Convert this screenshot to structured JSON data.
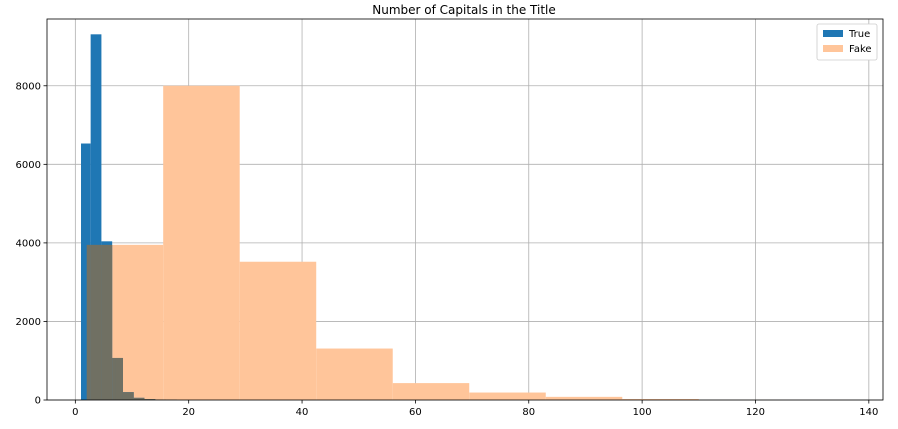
{
  "chart_data": {
    "type": "bar",
    "title": "Number of Capitals in the Title",
    "xlabel": "",
    "ylabel": "",
    "xlim": [
      -5,
      142.5
    ],
    "ylim": [
      0,
      9700
    ],
    "x_ticks": [
      0,
      20,
      40,
      60,
      80,
      100,
      120,
      140
    ],
    "y_ticks": [
      0,
      2000,
      4000,
      6000,
      8000
    ],
    "grid": true,
    "legend_position": "top-right",
    "series": [
      {
        "name": "True",
        "color": "#1f77b4",
        "opacity": 1.0,
        "bins": [
          {
            "x0": 1.0,
            "x1": 2.7,
            "value": 6530
          },
          {
            "x0": 2.7,
            "x1": 4.6,
            "value": 9310
          },
          {
            "x0": 4.6,
            "x1": 6.5,
            "value": 4040
          },
          {
            "x0": 6.5,
            "x1": 8.4,
            "value": 1070
          },
          {
            "x0": 8.4,
            "x1": 10.3,
            "value": 200
          },
          {
            "x0": 10.3,
            "x1": 12.2,
            "value": 55
          },
          {
            "x0": 12.2,
            "x1": 14.1,
            "value": 25
          },
          {
            "x0": 14.1,
            "x1": 16.0,
            "value": 10
          },
          {
            "x0": 16.0,
            "x1": 17.9,
            "value": 5
          }
        ]
      },
      {
        "name": "Fake",
        "color": "#ffbb78",
        "opacity": 0.5,
        "fill_color": "#ffc59a",
        "bins": [
          {
            "x0": 2.0,
            "x1": 7.0,
            "value": 3950
          },
          {
            "x0": 7.0,
            "x1": 15.5,
            "value": 3950
          },
          {
            "x0": 15.5,
            "x1": 29.0,
            "value": 8000
          },
          {
            "x0": 29.0,
            "x1": 42.5,
            "value": 3520
          },
          {
            "x0": 42.5,
            "x1": 56.0,
            "value": 1310
          },
          {
            "x0": 56.0,
            "x1": 69.5,
            "value": 430
          },
          {
            "x0": 69.5,
            "x1": 83.0,
            "value": 190
          },
          {
            "x0": 83.0,
            "x1": 96.5,
            "value": 80
          },
          {
            "x0": 96.5,
            "x1": 110.0,
            "value": 25
          },
          {
            "x0": 110.0,
            "x1": 123.5,
            "value": 3
          },
          {
            "x0": 123.5,
            "x1": 137.0,
            "value": 1
          }
        ]
      }
    ]
  }
}
